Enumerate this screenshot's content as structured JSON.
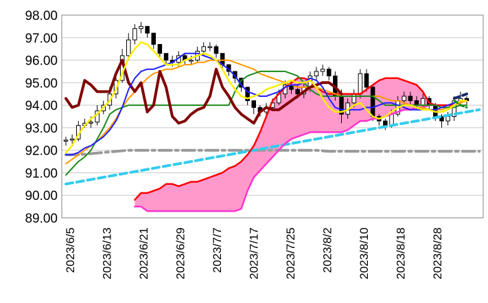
{
  "chart_data": {
    "type": "line",
    "title": "",
    "xlabel": "",
    "ylabel": "",
    "ylim": [
      89.0,
      98.0
    ],
    "y_ticks": [
      "98.00",
      "97.00",
      "96.00",
      "95.00",
      "94.00",
      "93.00",
      "92.00",
      "91.00",
      "90.00",
      "89.00"
    ],
    "x_tick_labels": [
      "2023/6/5",
      "2023/6/13",
      "2023/6/21",
      "2023/6/29",
      "2023/7/7",
      "2023/7/17",
      "2023/7/25",
      "2023/8/2",
      "2023/8/10",
      "2023/8/18",
      "2023/8/28"
    ],
    "grid": true,
    "legend": "none",
    "n_points": 65,
    "candles": {
      "name": "",
      "open": [
        92.45,
        92.45,
        92.5,
        93.1,
        93.2,
        93.25,
        93.75,
        94.0,
        94.5,
        95.1,
        96.2,
        96.9,
        97.4,
        97.5,
        97.2,
        96.7,
        96.3,
        96.0,
        95.9,
        96.2,
        96.0,
        96.0,
        96.4,
        96.6,
        96.6,
        96.3,
        95.8,
        95.5,
        95.2,
        94.8,
        94.2,
        93.9,
        93.7,
        93.9,
        94.1,
        94.5,
        94.9,
        94.7,
        94.5,
        94.8,
        95.3,
        95.5,
        95.6,
        95.3,
        94.4,
        93.6,
        94.1,
        94.5,
        95.4,
        94.8,
        93.5,
        93.3,
        93.1,
        93.6,
        94.2,
        94.4,
        94.2,
        94.0,
        94.3,
        94.0,
        93.5,
        93.3,
        93.5,
        94.2,
        94.3
      ],
      "close": [
        92.45,
        92.5,
        93.1,
        93.2,
        93.25,
        93.75,
        94.0,
        94.5,
        95.1,
        96.2,
        96.9,
        97.4,
        97.5,
        97.2,
        96.7,
        96.3,
        96.0,
        95.9,
        96.2,
        96.0,
        96.0,
        96.4,
        96.6,
        96.6,
        96.3,
        95.8,
        95.5,
        95.2,
        94.8,
        94.2,
        93.9,
        93.7,
        93.9,
        94.1,
        94.5,
        94.9,
        94.7,
        94.5,
        94.8,
        95.3,
        95.5,
        95.6,
        95.3,
        94.4,
        93.6,
        94.1,
        94.5,
        95.4,
        94.8,
        93.5,
        93.3,
        93.1,
        93.6,
        94.2,
        94.4,
        94.2,
        94.0,
        94.3,
        94.0,
        93.5,
        93.3,
        93.5,
        94.2,
        94.3,
        94.2
      ],
      "high": [
        92.6,
        92.7,
        93.3,
        93.4,
        93.5,
        94.0,
        94.2,
        94.8,
        95.4,
        96.5,
        97.2,
        97.6,
        97.7,
        97.5,
        97.0,
        96.6,
        96.3,
        96.2,
        96.4,
        96.3,
        96.2,
        96.6,
        96.8,
        96.8,
        96.7,
        96.0,
        95.8,
        95.5,
        95.0,
        94.5,
        94.2,
        94.0,
        94.1,
        94.3,
        94.7,
        95.1,
        95.1,
        94.9,
        95.0,
        95.5,
        95.7,
        95.8,
        95.7,
        95.5,
        94.7,
        94.3,
        94.7,
        95.6,
        95.6,
        94.9,
        93.6,
        93.4,
        93.8,
        94.4,
        94.6,
        94.6,
        94.4,
        94.5,
        94.4,
        94.1,
        93.6,
        93.7,
        94.4,
        94.6,
        94.4
      ],
      "low": [
        92.2,
        92.3,
        92.4,
        93.0,
        93.0,
        93.1,
        93.6,
        93.8,
        94.3,
        95.0,
        96.0,
        96.7,
        97.2,
        97.0,
        96.5,
        96.1,
        95.8,
        95.7,
        95.7,
        95.8,
        95.8,
        95.9,
        96.2,
        96.4,
        96.1,
        95.6,
        95.3,
        95.0,
        94.6,
        94.0,
        93.6,
        93.5,
        93.5,
        93.8,
        94.0,
        94.3,
        94.5,
        94.3,
        94.3,
        94.6,
        95.1,
        95.3,
        95.1,
        94.2,
        93.2,
        93.4,
        93.9,
        94.3,
        94.6,
        93.3,
        93.1,
        92.9,
        93.0,
        93.5,
        94.0,
        94.0,
        93.8,
        93.8,
        93.8,
        93.3,
        93.0,
        93.1,
        93.3,
        94.0,
        94.0
      ]
    },
    "series": [
      {
        "name": "",
        "color": "#1f1fff",
        "width": 2,
        "dash": "",
        "values": [
          91.8,
          91.8,
          91.9,
          92.1,
          92.2,
          92.4,
          92.6,
          92.9,
          93.3,
          93.9,
          94.7,
          95.2,
          95.5,
          95.6,
          95.6,
          95.7,
          95.8,
          95.9,
          96.1,
          96.3,
          96.3,
          96.3,
          96.2,
          96.1,
          96.0,
          95.8,
          95.6,
          95.3,
          94.9,
          94.6,
          94.5,
          94.4,
          94.4,
          94.5,
          94.6,
          94.8,
          94.9,
          94.9,
          95.0,
          95.2,
          95.1,
          94.8,
          94.3,
          93.9,
          93.8,
          93.8,
          93.8,
          93.8,
          93.9,
          93.9,
          94.0,
          94.1,
          94.1,
          94.0,
          93.9,
          93.8,
          93.8,
          93.8,
          93.8,
          93.8,
          93.9,
          94.0,
          94.1,
          94.2,
          94.2
        ]
      },
      {
        "name": "",
        "color": "#ffee00",
        "width": 2.5,
        "dash": "",
        "values": [
          91.9,
          92.2,
          92.7,
          93.1,
          93.4,
          93.6,
          93.9,
          94.2,
          94.7,
          95.4,
          96.1,
          96.5,
          96.8,
          96.7,
          96.4,
          96.1,
          95.8,
          95.8,
          95.8,
          96.0,
          96.1,
          96.2,
          96.3,
          96.2,
          96.0,
          95.6,
          95.1,
          94.7,
          94.4,
          94.3,
          94.4,
          94.5,
          94.7,
          94.8,
          94.9,
          95.0,
          95.1,
          95.0,
          95.0,
          95.1,
          94.8,
          94.3,
          93.9,
          93.7,
          93.7,
          93.8,
          94.0,
          94.1,
          93.8,
          93.5,
          93.4,
          93.5,
          93.7,
          93.9,
          94.0,
          94.0,
          93.9,
          93.8,
          93.8,
          93.7,
          93.7,
          93.8,
          94.0,
          94.2,
          94.2
        ]
      },
      {
        "name": "",
        "color": "#1a8a1a",
        "width": 2,
        "dash": "",
        "values": [
          90.9,
          91.2,
          91.5,
          91.7,
          92.0,
          92.5,
          93.0,
          93.6,
          93.8,
          93.9,
          94.0,
          94.0,
          94.0,
          94.0,
          94.0,
          94.0,
          94.0,
          94.0,
          94.0,
          94.0,
          94.0,
          94.0,
          94.0,
          94.0,
          94.0,
          94.0,
          94.0,
          94.6,
          95.1,
          95.3,
          95.4,
          95.5,
          95.5,
          95.5,
          95.5,
          95.5,
          95.4,
          95.3,
          95.0,
          94.7,
          94.5,
          94.4,
          94.4,
          94.4,
          94.4,
          94.4,
          94.4,
          94.4,
          94.4,
          94.4,
          94.2,
          94.0,
          94.0,
          94.0,
          94.0,
          94.0,
          94.0,
          94.0,
          94.0,
          94.0,
          93.9,
          93.9,
          93.9,
          94.0,
          94.0
        ]
      },
      {
        "name": "",
        "color": "#ff9900",
        "width": 2,
        "dash": "",
        "values": [
          91.4,
          91.6,
          91.8,
          92.0,
          92.2,
          92.4,
          92.7,
          93.0,
          93.4,
          93.9,
          94.3,
          94.6,
          94.9,
          95.2,
          95.4,
          95.5,
          95.6,
          95.6,
          95.7,
          95.8,
          95.8,
          95.9,
          95.9,
          96.0,
          96.0,
          96.0,
          96.0,
          95.9,
          95.8,
          95.7,
          95.6,
          95.4,
          95.3,
          95.2,
          95.1,
          95.0,
          94.9,
          94.8,
          94.8,
          94.8,
          94.8,
          94.7,
          94.6,
          94.5,
          94.4,
          94.4,
          94.4,
          94.4,
          94.4,
          94.4,
          94.4,
          94.3,
          94.2,
          94.2,
          94.1,
          94.0,
          93.9,
          93.9,
          93.8,
          93.8,
          93.8,
          93.9,
          94.0,
          94.1,
          94.2
        ]
      },
      {
        "name": "",
        "color": "#800000",
        "width": 4,
        "dash": "",
        "values": [
          94.3,
          93.9,
          94.0,
          95.1,
          94.9,
          94.6,
          94.6,
          94.6,
          95.4,
          96.0,
          95.0,
          94.6,
          95.0,
          93.7,
          94.0,
          95.5,
          94.8,
          93.5,
          93.2,
          93.3,
          93.6,
          93.8,
          93.9,
          94.4,
          95.6,
          94.8,
          94.4,
          93.9,
          93.6,
          93.4,
          93.2,
          93.7,
          93.9,
          93.8,
          93.8,
          94.0,
          94.2,
          94.4,
          94.6,
          94.8,
          94.9,
          95.0,
          95.0,
          94.8,
          94.5
        ]
      },
      {
        "name": "",
        "color": "#ff0000",
        "width": 2.5,
        "dash": "",
        "values": [
          89.8,
          90.1,
          90.1,
          90.2,
          90.3,
          90.5,
          90.5,
          90.4,
          90.5,
          90.6,
          90.6,
          90.7,
          90.8,
          90.9,
          91.0,
          91.2,
          91.3,
          91.5,
          91.8,
          92.2,
          92.8,
          93.5,
          94.2,
          94.5,
          94.8,
          95.0,
          95.2,
          95.2,
          95.1,
          94.8,
          94.6,
          94.5,
          94.5,
          94.5,
          94.5,
          94.5,
          94.5,
          94.7,
          94.9,
          95.1,
          95.2,
          95.2,
          95.2,
          95.1,
          95.0,
          94.9,
          94.6,
          94.1,
          94.0,
          94.0,
          94.0,
          94.0
        ],
        "offset": 11
      },
      {
        "name": "",
        "color": "#ff33cc",
        "width": 2.5,
        "dash": "",
        "values": [
          89.5,
          89.5,
          89.3,
          89.3,
          89.3,
          89.3,
          89.3,
          89.3,
          89.3,
          89.3,
          89.3,
          89.3,
          89.3,
          89.3,
          89.3,
          89.3,
          89.3,
          89.4,
          90.2,
          90.8,
          91.1,
          91.4,
          91.7,
          92.0,
          92.3,
          92.5,
          92.6,
          92.7,
          92.8,
          92.8,
          92.8,
          92.8,
          92.8,
          92.8,
          92.9,
          93.1,
          93.3,
          93.3,
          93.4,
          93.4,
          93.5,
          93.6,
          93.7,
          93.8,
          93.8,
          93.9,
          93.9,
          94.0,
          94.0,
          94.0,
          94.0,
          94.0
        ],
        "offset": 11
      },
      {
        "name": "",
        "color": "#33ccee",
        "width": 4,
        "dash": "10,6",
        "values": [
          90.5,
          90.6,
          90.7,
          90.8,
          90.9,
          91.0,
          91.1,
          91.2,
          91.3,
          91.4,
          91.5,
          91.6,
          91.7,
          91.8,
          91.9,
          92.0,
          92.1,
          92.2,
          92.3,
          92.4,
          92.5,
          92.6,
          92.7,
          92.8,
          92.9,
          93.0,
          93.1,
          93.2,
          93.3,
          93.4,
          93.5,
          93.6,
          93.7,
          93.8
        ],
        "offset": 0,
        "step": 2
      },
      {
        "name": "",
        "color": "#999999",
        "width": 4,
        "dash": "18,6,4,6",
        "values": [
          91.8,
          91.8,
          91.85,
          91.9,
          91.95,
          92.0,
          92.0,
          92.0,
          92.0,
          92.0,
          92.0,
          92.0,
          92.0,
          92.0,
          92.0,
          92.0,
          92.0,
          92.0,
          92.0,
          92.0,
          92.0,
          91.95,
          91.95,
          91.95,
          91.95,
          91.95,
          91.95,
          91.95,
          91.95,
          91.95,
          91.95,
          91.95,
          91.95,
          91.95
        ],
        "offset": 0,
        "step": 2
      },
      {
        "name": "",
        "color": "#1a2a6c",
        "width": 4,
        "dash": "8,5",
        "values": [
          94.3,
          94.4,
          94.5
        ],
        "offset": 62,
        "step": 1
      }
    ],
    "cloud_fill": "#ff99cc",
    "extra_tail": [
      {
        "color": "#1a8a1a",
        "dash": "6,4",
        "values": [
          94.2,
          94.0,
          93.9
        ],
        "offset": 62
      }
    ]
  }
}
